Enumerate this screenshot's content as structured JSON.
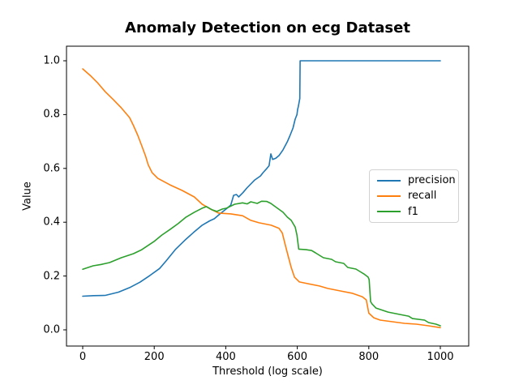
{
  "chart_data": {
    "type": "line",
    "title": "Anomaly Detection on ecg Dataset",
    "xlabel": "Threshold (log scale)",
    "ylabel": "Value",
    "xlim": [
      -45,
      1080
    ],
    "ylim": [
      -0.06,
      1.05
    ],
    "xticks": [
      0,
      200,
      400,
      600,
      800,
      1000
    ],
    "xtick_labels": [
      "0",
      "200",
      "400",
      "600",
      "800",
      "1000"
    ],
    "yticks": [
      0.0,
      0.2,
      0.4,
      0.6,
      0.8,
      1.0
    ],
    "ytick_labels": [
      "0.0",
      "0.2",
      "0.4",
      "0.6",
      "0.8",
      "1.0"
    ],
    "grid": false,
    "legend_position": "center right",
    "background_color": "#ffffff",
    "spine_color": "#000000",
    "series": [
      {
        "name": "precision",
        "color": "#1f77b4",
        "points": [
          [
            0,
            0.125
          ],
          [
            30,
            0.127
          ],
          [
            63,
            0.128
          ],
          [
            100,
            0.14
          ],
          [
            131,
            0.157
          ],
          [
            160,
            0.177
          ],
          [
            188,
            0.202
          ],
          [
            215,
            0.228
          ],
          [
            233,
            0.256
          ],
          [
            260,
            0.3
          ],
          [
            289,
            0.337
          ],
          [
            310,
            0.362
          ],
          [
            334,
            0.389
          ],
          [
            355,
            0.405
          ],
          [
            368,
            0.413
          ],
          [
            384,
            0.431
          ],
          [
            400,
            0.448
          ],
          [
            414,
            0.464
          ],
          [
            422,
            0.5
          ],
          [
            430,
            0.503
          ],
          [
            436,
            0.494
          ],
          [
            448,
            0.51
          ],
          [
            459,
            0.527
          ],
          [
            481,
            0.557
          ],
          [
            497,
            0.572
          ],
          [
            504,
            0.584
          ],
          [
            515,
            0.6
          ],
          [
            521,
            0.61
          ],
          [
            526,
            0.654
          ],
          [
            531,
            0.633
          ],
          [
            540,
            0.638
          ],
          [
            549,
            0.648
          ],
          [
            560,
            0.669
          ],
          [
            572,
            0.699
          ],
          [
            579,
            0.72
          ],
          [
            588,
            0.75
          ],
          [
            594,
            0.783
          ],
          [
            599,
            0.8
          ],
          [
            601,
            0.819
          ],
          [
            603,
            0.83
          ],
          [
            605,
            0.845
          ],
          [
            607,
            0.86
          ],
          [
            608,
            1.0
          ],
          [
            1000,
            1.0
          ]
        ]
      },
      {
        "name": "recall",
        "color": "#ff7f0e",
        "points": [
          [
            0,
            0.97
          ],
          [
            23,
            0.943
          ],
          [
            41,
            0.919
          ],
          [
            63,
            0.885
          ],
          [
            86,
            0.855
          ],
          [
            108,
            0.825
          ],
          [
            131,
            0.789
          ],
          [
            142,
            0.759
          ],
          [
            154,
            0.723
          ],
          [
            165,
            0.684
          ],
          [
            176,
            0.645
          ],
          [
            183,
            0.614
          ],
          [
            194,
            0.584
          ],
          [
            210,
            0.563
          ],
          [
            244,
            0.539
          ],
          [
            278,
            0.518
          ],
          [
            312,
            0.494
          ],
          [
            334,
            0.467
          ],
          [
            357,
            0.449
          ],
          [
            380,
            0.434
          ],
          [
            414,
            0.431
          ],
          [
            447,
            0.424
          ],
          [
            470,
            0.407
          ],
          [
            493,
            0.398
          ],
          [
            527,
            0.389
          ],
          [
            549,
            0.377
          ],
          [
            558,
            0.36
          ],
          [
            567,
            0.313
          ],
          [
            574,
            0.277
          ],
          [
            583,
            0.232
          ],
          [
            592,
            0.196
          ],
          [
            606,
            0.178
          ],
          [
            628,
            0.172
          ],
          [
            662,
            0.163
          ],
          [
            685,
            0.154
          ],
          [
            719,
            0.145
          ],
          [
            753,
            0.136
          ],
          [
            782,
            0.123
          ],
          [
            793,
            0.111
          ],
          [
            800,
            0.062
          ],
          [
            814,
            0.045
          ],
          [
            832,
            0.036
          ],
          [
            866,
            0.03
          ],
          [
            900,
            0.024
          ],
          [
            933,
            0.021
          ],
          [
            967,
            0.015
          ],
          [
            1000,
            0.008
          ]
        ]
      },
      {
        "name": "f1",
        "color": "#2ca02c",
        "points": [
          [
            0,
            0.225
          ],
          [
            29,
            0.238
          ],
          [
            52,
            0.243
          ],
          [
            75,
            0.25
          ],
          [
            108,
            0.268
          ],
          [
            142,
            0.283
          ],
          [
            165,
            0.298
          ],
          [
            199,
            0.328
          ],
          [
            221,
            0.352
          ],
          [
            244,
            0.373
          ],
          [
            267,
            0.395
          ],
          [
            289,
            0.419
          ],
          [
            312,
            0.437
          ],
          [
            334,
            0.452
          ],
          [
            346,
            0.458
          ],
          [
            362,
            0.446
          ],
          [
            375,
            0.44
          ],
          [
            391,
            0.449
          ],
          [
            402,
            0.452
          ],
          [
            425,
            0.467
          ],
          [
            447,
            0.472
          ],
          [
            460,
            0.468
          ],
          [
            470,
            0.476
          ],
          [
            488,
            0.47
          ],
          [
            500,
            0.478
          ],
          [
            515,
            0.477
          ],
          [
            526,
            0.47
          ],
          [
            538,
            0.458
          ],
          [
            560,
            0.437
          ],
          [
            572,
            0.419
          ],
          [
            583,
            0.407
          ],
          [
            594,
            0.382
          ],
          [
            599,
            0.352
          ],
          [
            604,
            0.3
          ],
          [
            625,
            0.298
          ],
          [
            640,
            0.295
          ],
          [
            651,
            0.286
          ],
          [
            662,
            0.277
          ],
          [
            673,
            0.268
          ],
          [
            696,
            0.262
          ],
          [
            707,
            0.253
          ],
          [
            730,
            0.247
          ],
          [
            741,
            0.232
          ],
          [
            764,
            0.226
          ],
          [
            775,
            0.217
          ],
          [
            786,
            0.208
          ],
          [
            798,
            0.196
          ],
          [
            801,
            0.187
          ],
          [
            805,
            0.105
          ],
          [
            809,
            0.096
          ],
          [
            820,
            0.081
          ],
          [
            854,
            0.066
          ],
          [
            888,
            0.057
          ],
          [
            911,
            0.051
          ],
          [
            922,
            0.042
          ],
          [
            956,
            0.036
          ],
          [
            967,
            0.027
          ],
          [
            988,
            0.021
          ],
          [
            1000,
            0.015
          ]
        ]
      }
    ]
  }
}
